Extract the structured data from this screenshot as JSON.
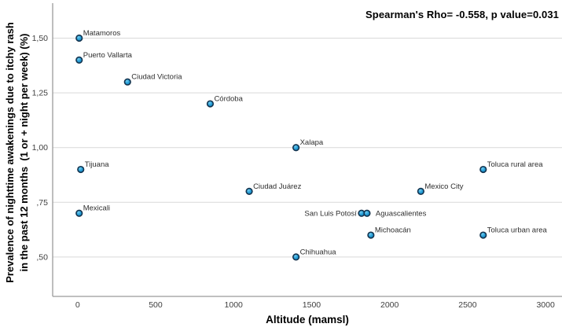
{
  "annotation": "Spearman's Rho= -0.558, p value=0.031",
  "chart_data": {
    "type": "scatter",
    "title": "",
    "xlabel": "Altitude (mamsl)",
    "ylabel_line1": "Prevalence of nighttime awakenings due to itchy rash",
    "ylabel_line2": "in the past 12 months  (1 or + night per week) (%)",
    "xlim": [
      -160,
      3100
    ],
    "ylim": [
      0.32,
      1.66
    ],
    "grid": "horizontal-only",
    "legend": null,
    "x_ticks": [
      {
        "value": 0,
        "label": "0"
      },
      {
        "value": 500,
        "label": "500"
      },
      {
        "value": 1000,
        "label": "1000"
      },
      {
        "value": 1500,
        "label": "1500"
      },
      {
        "value": 2000,
        "label": "2000"
      },
      {
        "value": 2500,
        "label": "2500"
      },
      {
        "value": 3000,
        "label": "3000"
      }
    ],
    "y_ticks": [
      {
        "value": 1.5,
        "label": "1,50"
      },
      {
        "value": 1.25,
        "label": "1,25"
      },
      {
        "value": 1.0,
        "label": "1,00"
      },
      {
        "value": 0.75,
        "label": ",75"
      },
      {
        "value": 0.5,
        "label": ",50"
      }
    ],
    "points": [
      {
        "label": "Matamoros",
        "x": 10,
        "y": 1.5,
        "label_pos": "above-right"
      },
      {
        "label": "Puerto Vallarta",
        "x": 10,
        "y": 1.4,
        "label_pos": "above-right"
      },
      {
        "label": "Ciudad Victoria",
        "x": 320,
        "y": 1.3,
        "label_pos": "above-right"
      },
      {
        "label": "Córdoba",
        "x": 850,
        "y": 1.2,
        "label_pos": "above-right"
      },
      {
        "label": "Xalapa",
        "x": 1400,
        "y": 1.0,
        "label_pos": "above-right"
      },
      {
        "label": "Tijuana",
        "x": 20,
        "y": 0.9,
        "label_pos": "above-right"
      },
      {
        "label": "Toluca rural area",
        "x": 2600,
        "y": 0.9,
        "label_pos": "above-right"
      },
      {
        "label": "Ciudad Juárez",
        "x": 1100,
        "y": 0.8,
        "label_pos": "above-right"
      },
      {
        "label": "Mexico City",
        "x": 2200,
        "y": 0.8,
        "label_pos": "above-right"
      },
      {
        "label": "Mexicali",
        "x": 10,
        "y": 0.7,
        "label_pos": "above-right"
      },
      {
        "label": "San Luis Potosí",
        "x": 1820,
        "y": 0.7,
        "label_pos": "left-center"
      },
      {
        "label": "Aguascalientes",
        "x": 1855,
        "y": 0.7,
        "label_pos": "right-center"
      },
      {
        "label": "Michoacán",
        "x": 1880,
        "y": 0.6,
        "label_pos": "above-right"
      },
      {
        "label": "Toluca urban area",
        "x": 2600,
        "y": 0.6,
        "label_pos": "above-right"
      },
      {
        "label": "Chihuahua",
        "x": 1400,
        "y": 0.5,
        "label_pos": "above-right"
      }
    ],
    "colors": {
      "marker_fill": "#29a0d8",
      "marker_fill_light": "#74cdf0",
      "marker_fill_dark": "#0e84c0",
      "marker_stroke": "#14344f",
      "grid_line": "#d9d9d9",
      "axis_line": "#9b9b9b",
      "tick_text": "#3f3f3f",
      "point_label_text": "#2e2e2e",
      "title_text": "#000000"
    }
  }
}
